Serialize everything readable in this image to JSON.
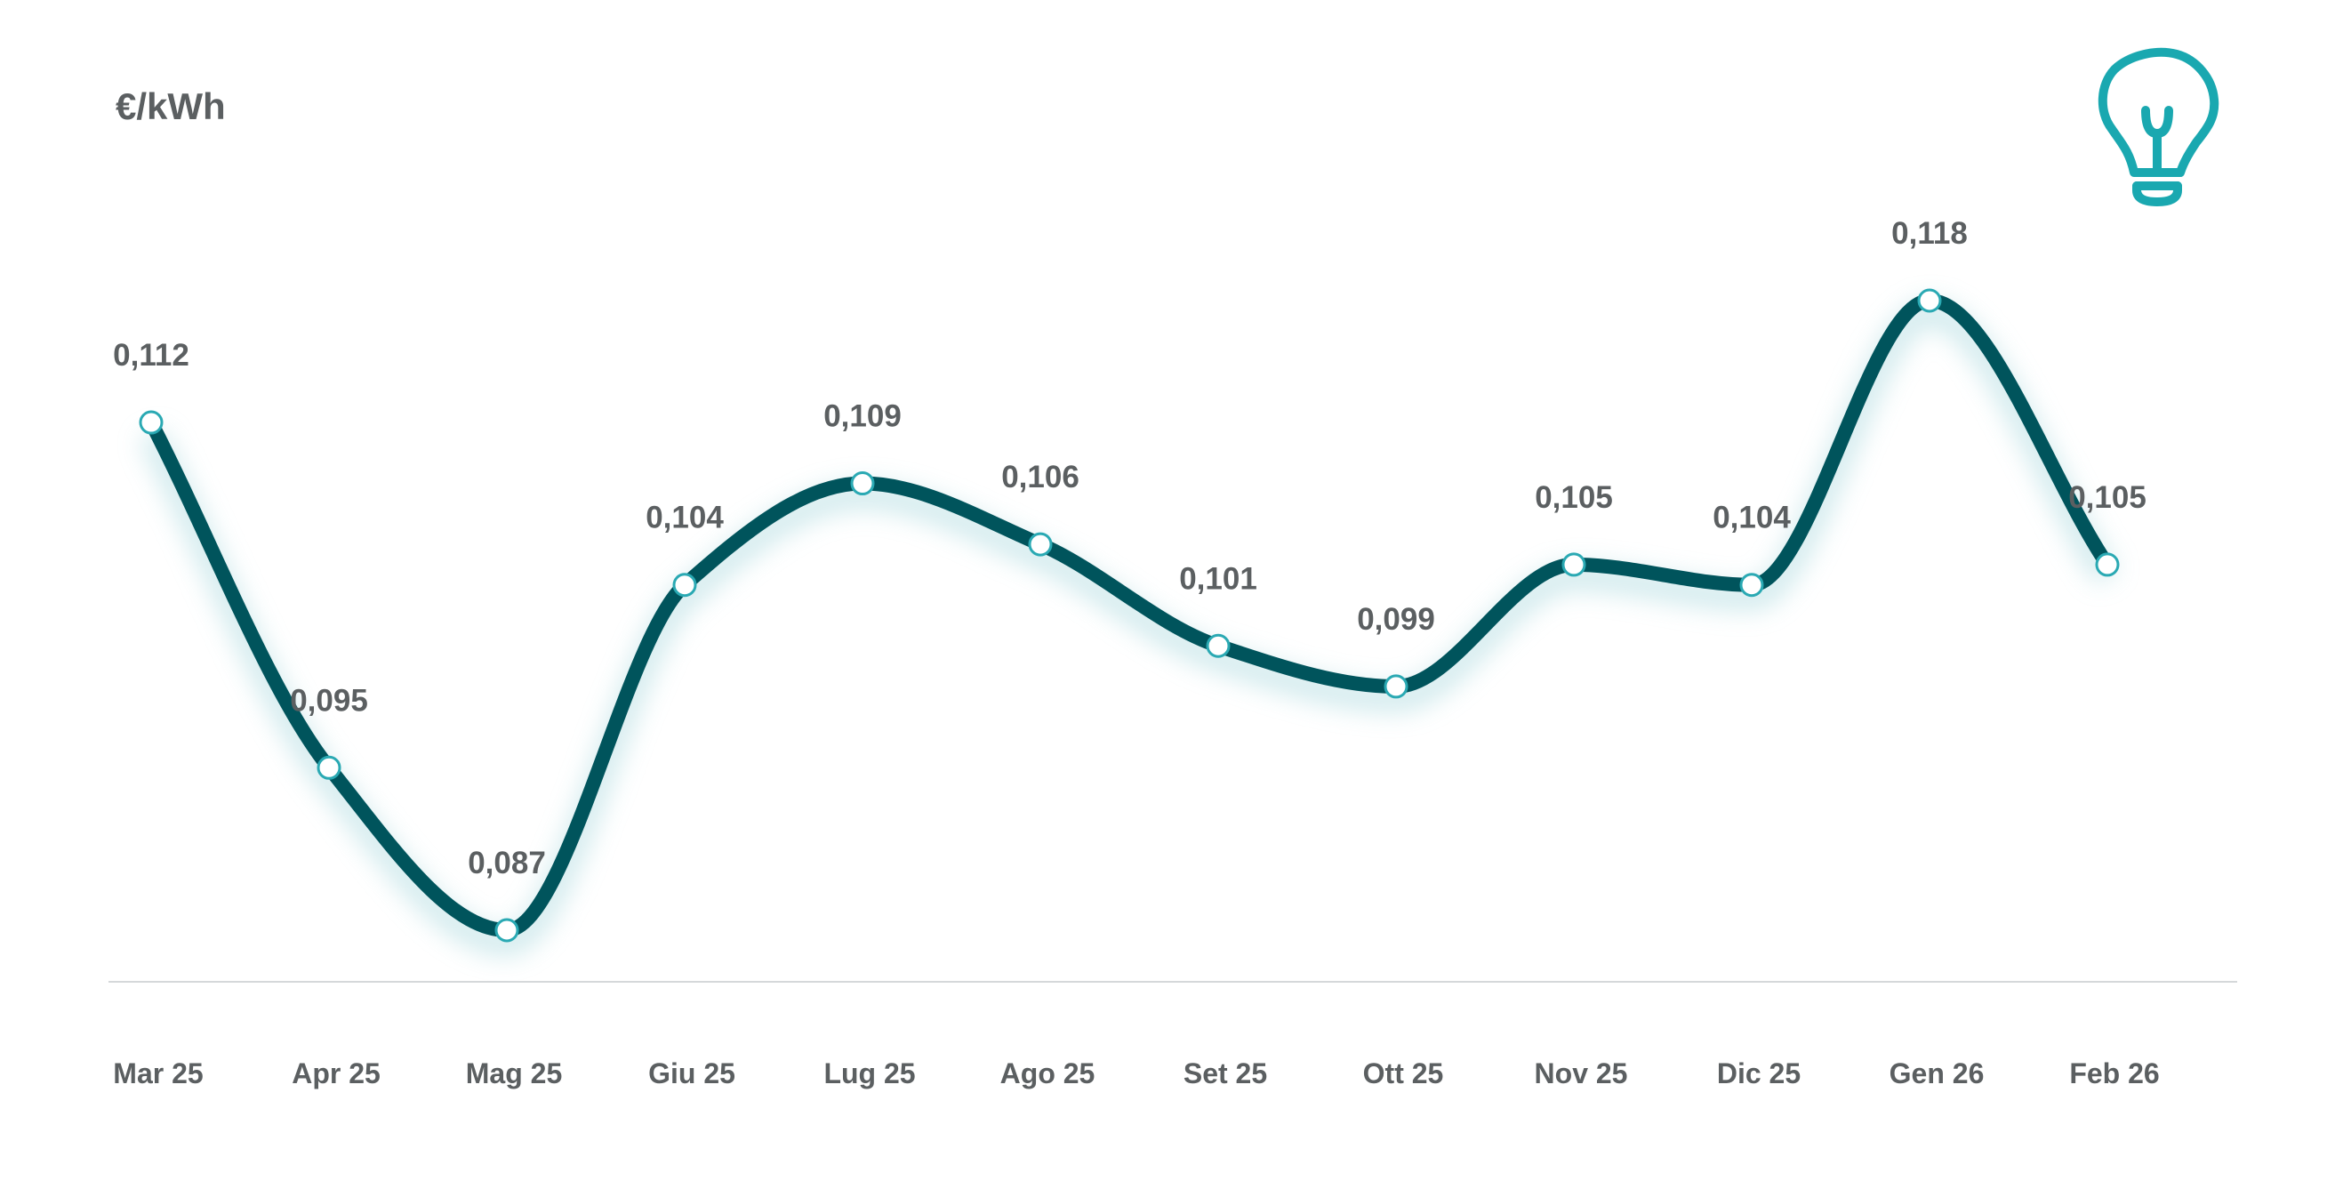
{
  "chart_data": {
    "type": "line",
    "unit_label": "€/kWh",
    "categories": [
      "Mar 25",
      "Apr 25",
      "Mag 25",
      "Giu 25",
      "Lug 25",
      "Ago 25",
      "Set 25",
      "Ott 25",
      "Nov 25",
      "Dic 25",
      "Gen 26",
      "Feb 26"
    ],
    "values": [
      0.112,
      0.095,
      0.087,
      0.104,
      0.109,
      0.106,
      0.101,
      0.099,
      0.105,
      0.104,
      0.118,
      0.105
    ],
    "value_labels": [
      "0,112",
      "0,095",
      "0,087",
      "0,104",
      "0,109",
      "0,106",
      "0,101",
      "0,099",
      "0,105",
      "0,104",
      "0,118",
      "0,105"
    ],
    "smooth": true,
    "grid": false,
    "legend": "none",
    "colors": {
      "line": "#00545c",
      "glow": "#bfe2e6",
      "point_fill": "#ffffff",
      "point_stroke": "#2aa9b3",
      "axis": "#d5d8da",
      "text": "#5b5f61",
      "icon": "#1aa8b0"
    }
  },
  "icon": {
    "name": "lightbulb-icon"
  }
}
